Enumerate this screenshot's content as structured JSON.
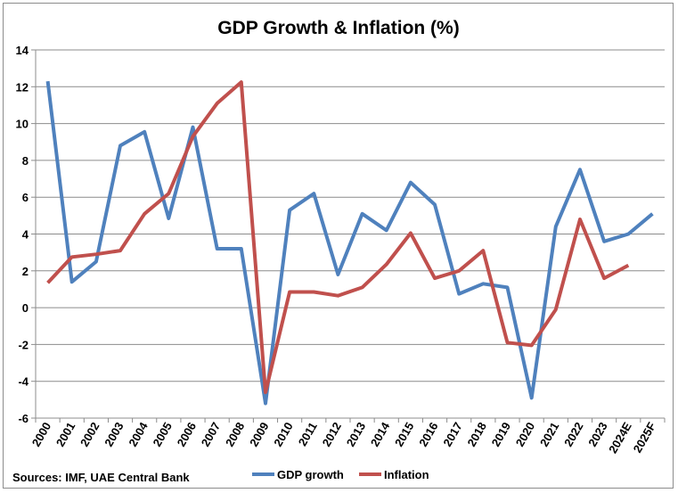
{
  "chart_data": {
    "type": "line",
    "title": "GDP Growth & Inflation (%)",
    "xlabel": "",
    "ylabel": "",
    "categories": [
      "2000",
      "2001",
      "2002",
      "2003",
      "2004",
      "2005",
      "2006",
      "2007",
      "2008",
      "2009",
      "2010",
      "2011",
      "2012",
      "2013",
      "2014",
      "2015",
      "2016",
      "2017",
      "2018",
      "2019",
      "2020",
      "2021",
      "2022",
      "2023",
      "2024E",
      "2025F"
    ],
    "ylim": [
      -6,
      14
    ],
    "yticks": [
      -6,
      -4,
      -2,
      0,
      2,
      4,
      6,
      8,
      10,
      12,
      14
    ],
    "grid": true,
    "legend_position": "bottom",
    "series": [
      {
        "name": "GDP growth",
        "color": "#4f81bd",
        "values": [
          12.3,
          1.4,
          2.5,
          8.8,
          9.55,
          4.85,
          9.8,
          3.2,
          3.2,
          -5.2,
          5.3,
          6.2,
          1.8,
          5.1,
          4.2,
          6.8,
          5.6,
          0.75,
          1.3,
          1.1,
          -4.9,
          4.4,
          7.5,
          3.6,
          4.0,
          5.1
        ]
      },
      {
        "name": "Inflation",
        "color": "#c0504d",
        "values": [
          1.35,
          2.75,
          2.9,
          3.1,
          5.1,
          6.2,
          9.3,
          11.1,
          12.25,
          -4.6,
          0.85,
          0.85,
          0.65,
          1.1,
          2.35,
          4.05,
          1.6,
          2.0,
          3.1,
          -1.9,
          -2.05,
          -0.1,
          4.8,
          1.6,
          2.3,
          null
        ]
      }
    ]
  },
  "footer": {
    "source": "Sources: IMF, UAE Central Bank"
  }
}
